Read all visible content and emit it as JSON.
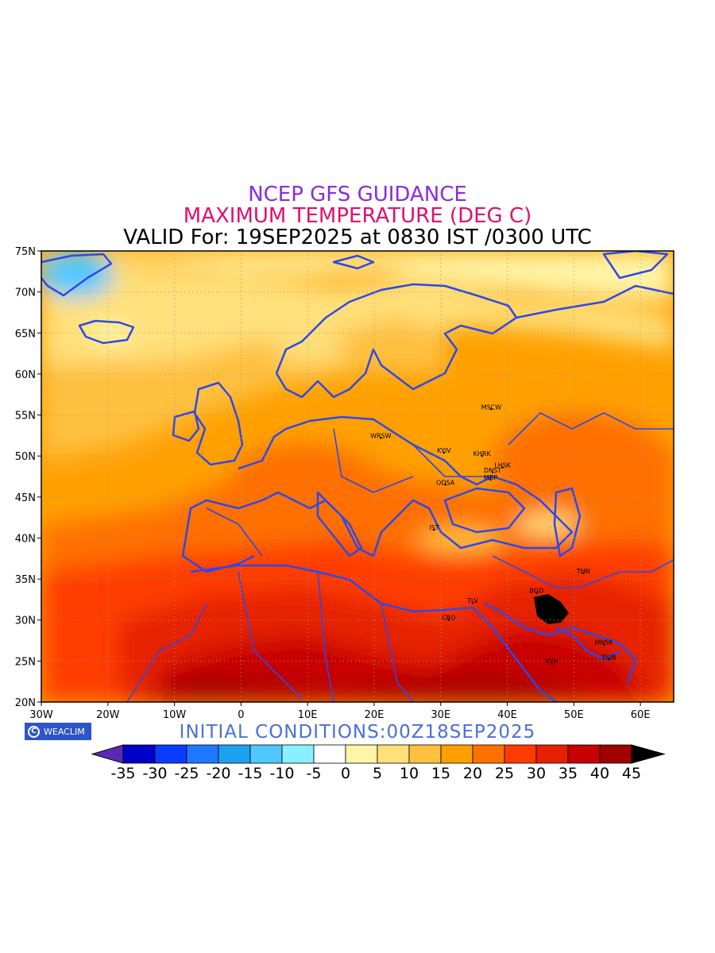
{
  "titles": {
    "line1": "NCEP GFS GUIDANCE",
    "line2": "MAXIMUM TEMPERATURE (DEG C)",
    "line3": "VALID For: 19SEP2025 at 0830 IST /0300 UTC",
    "initial": "INITIAL CONDITIONS:00Z18SEP2025",
    "colors": {
      "line1": "#8a2be2",
      "line2": "#e0106e",
      "initial": "#4a6fd8"
    }
  },
  "badge": {
    "text": "WEACLIM",
    "logo": "C"
  },
  "map": {
    "lon_range": [
      -30,
      65
    ],
    "lat_range": [
      20,
      75
    ],
    "x_ticks": [
      {
        "value": -30,
        "label": "30W"
      },
      {
        "value": -20,
        "label": "20W"
      },
      {
        "value": -10,
        "label": "10W"
      },
      {
        "value": 0,
        "label": "0"
      },
      {
        "value": 10,
        "label": "10E"
      },
      {
        "value": 20,
        "label": "20E"
      },
      {
        "value": 30,
        "label": "30E"
      },
      {
        "value": 40,
        "label": "40E"
      },
      {
        "value": 50,
        "label": "50E"
      },
      {
        "value": 60,
        "label": "60E"
      }
    ],
    "y_ticks": [
      {
        "value": 75,
        "label": "75N"
      },
      {
        "value": 70,
        "label": "70N"
      },
      {
        "value": 65,
        "label": "65N"
      },
      {
        "value": 60,
        "label": "60N"
      },
      {
        "value": 55,
        "label": "55N"
      },
      {
        "value": 50,
        "label": "50N"
      },
      {
        "value": 45,
        "label": "45N"
      },
      {
        "value": 40,
        "label": "40N"
      },
      {
        "value": 35,
        "label": "35N"
      },
      {
        "value": 30,
        "label": "30N"
      },
      {
        "value": 25,
        "label": "25N"
      },
      {
        "value": 20,
        "label": "20N"
      }
    ],
    "grid": true,
    "coastline_color": "#2f48e8",
    "cities": [
      {
        "code": "MSCW",
        "lon": 37.6,
        "lat": 55.7
      },
      {
        "code": "WRSW",
        "lon": 21.0,
        "lat": 52.2
      },
      {
        "code": "KYIV",
        "lon": 30.5,
        "lat": 50.4
      },
      {
        "code": "KHRK",
        "lon": 36.2,
        "lat": 50.0
      },
      {
        "code": "LHSK",
        "lon": 39.3,
        "lat": 48.6
      },
      {
        "code": "DNST",
        "lon": 37.8,
        "lat": 48.0
      },
      {
        "code": "MRP",
        "lon": 37.5,
        "lat": 47.1
      },
      {
        "code": "ODSA",
        "lon": 30.7,
        "lat": 46.5
      },
      {
        "code": "IST",
        "lon": 29.0,
        "lat": 41.0
      },
      {
        "code": "THN",
        "lon": 51.4,
        "lat": 35.7
      },
      {
        "code": "BGD",
        "lon": 44.4,
        "lat": 33.3
      },
      {
        "code": "TLV",
        "lon": 34.8,
        "lat": 32.1
      },
      {
        "code": "CRO",
        "lon": 31.2,
        "lat": 30.0
      },
      {
        "code": "MNSK",
        "lon": 54.5,
        "lat": 27.0
      },
      {
        "code": "DUB",
        "lon": 55.3,
        "lat": 25.2
      },
      {
        "code": "RYH",
        "lon": 46.7,
        "lat": 24.7
      }
    ]
  },
  "colorbar": {
    "labels": [
      "-35",
      "-30",
      "-25",
      "-20",
      "-15",
      "-10",
      "-5",
      "0",
      "5",
      "10",
      "15",
      "20",
      "25",
      "30",
      "35",
      "40",
      "45"
    ],
    "under_color": "#5a2ab5",
    "over_color": "#000000",
    "colors": [
      "#0000c8",
      "#0a3cff",
      "#1e78ff",
      "#1ea0f0",
      "#50c8ff",
      "#8af0ff",
      "#ffffff",
      "#fff5a8",
      "#ffe07a",
      "#ffc040",
      "#ffa000",
      "#ff7000",
      "#ff3c00",
      "#e62000",
      "#c80000",
      "#a00000"
    ]
  }
}
